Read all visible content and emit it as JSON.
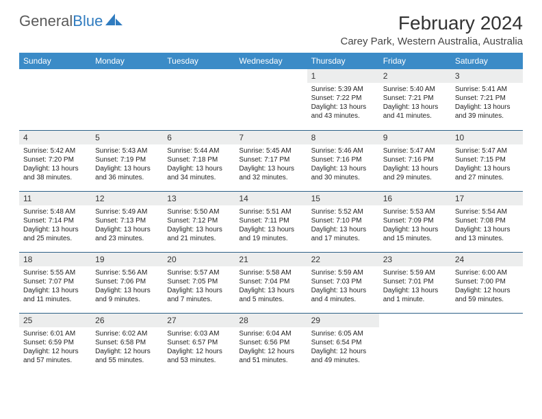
{
  "logo": {
    "text1": "General",
    "text2": "Blue"
  },
  "title": "February 2024",
  "location": "Carey Park, Western Australia, Australia",
  "colors": {
    "header_bg": "#3b8bc7",
    "header_text": "#ffffff",
    "daynum_bg": "#eceded",
    "row_border": "#2b5f86",
    "logo_blue": "#2f7bbf"
  },
  "day_headers": [
    "Sunday",
    "Monday",
    "Tuesday",
    "Wednesday",
    "Thursday",
    "Friday",
    "Saturday"
  ],
  "weeks": [
    [
      {
        "empty": true
      },
      {
        "empty": true
      },
      {
        "empty": true
      },
      {
        "empty": true
      },
      {
        "num": "1",
        "sunrise": "Sunrise: 5:39 AM",
        "sunset": "Sunset: 7:22 PM",
        "daylight": "Daylight: 13 hours and 43 minutes."
      },
      {
        "num": "2",
        "sunrise": "Sunrise: 5:40 AM",
        "sunset": "Sunset: 7:21 PM",
        "daylight": "Daylight: 13 hours and 41 minutes."
      },
      {
        "num": "3",
        "sunrise": "Sunrise: 5:41 AM",
        "sunset": "Sunset: 7:21 PM",
        "daylight": "Daylight: 13 hours and 39 minutes."
      }
    ],
    [
      {
        "num": "4",
        "sunrise": "Sunrise: 5:42 AM",
        "sunset": "Sunset: 7:20 PM",
        "daylight": "Daylight: 13 hours and 38 minutes."
      },
      {
        "num": "5",
        "sunrise": "Sunrise: 5:43 AM",
        "sunset": "Sunset: 7:19 PM",
        "daylight": "Daylight: 13 hours and 36 minutes."
      },
      {
        "num": "6",
        "sunrise": "Sunrise: 5:44 AM",
        "sunset": "Sunset: 7:18 PM",
        "daylight": "Daylight: 13 hours and 34 minutes."
      },
      {
        "num": "7",
        "sunrise": "Sunrise: 5:45 AM",
        "sunset": "Sunset: 7:17 PM",
        "daylight": "Daylight: 13 hours and 32 minutes."
      },
      {
        "num": "8",
        "sunrise": "Sunrise: 5:46 AM",
        "sunset": "Sunset: 7:16 PM",
        "daylight": "Daylight: 13 hours and 30 minutes."
      },
      {
        "num": "9",
        "sunrise": "Sunrise: 5:47 AM",
        "sunset": "Sunset: 7:16 PM",
        "daylight": "Daylight: 13 hours and 29 minutes."
      },
      {
        "num": "10",
        "sunrise": "Sunrise: 5:47 AM",
        "sunset": "Sunset: 7:15 PM",
        "daylight": "Daylight: 13 hours and 27 minutes."
      }
    ],
    [
      {
        "num": "11",
        "sunrise": "Sunrise: 5:48 AM",
        "sunset": "Sunset: 7:14 PM",
        "daylight": "Daylight: 13 hours and 25 minutes."
      },
      {
        "num": "12",
        "sunrise": "Sunrise: 5:49 AM",
        "sunset": "Sunset: 7:13 PM",
        "daylight": "Daylight: 13 hours and 23 minutes."
      },
      {
        "num": "13",
        "sunrise": "Sunrise: 5:50 AM",
        "sunset": "Sunset: 7:12 PM",
        "daylight": "Daylight: 13 hours and 21 minutes."
      },
      {
        "num": "14",
        "sunrise": "Sunrise: 5:51 AM",
        "sunset": "Sunset: 7:11 PM",
        "daylight": "Daylight: 13 hours and 19 minutes."
      },
      {
        "num": "15",
        "sunrise": "Sunrise: 5:52 AM",
        "sunset": "Sunset: 7:10 PM",
        "daylight": "Daylight: 13 hours and 17 minutes."
      },
      {
        "num": "16",
        "sunrise": "Sunrise: 5:53 AM",
        "sunset": "Sunset: 7:09 PM",
        "daylight": "Daylight: 13 hours and 15 minutes."
      },
      {
        "num": "17",
        "sunrise": "Sunrise: 5:54 AM",
        "sunset": "Sunset: 7:08 PM",
        "daylight": "Daylight: 13 hours and 13 minutes."
      }
    ],
    [
      {
        "num": "18",
        "sunrise": "Sunrise: 5:55 AM",
        "sunset": "Sunset: 7:07 PM",
        "daylight": "Daylight: 13 hours and 11 minutes."
      },
      {
        "num": "19",
        "sunrise": "Sunrise: 5:56 AM",
        "sunset": "Sunset: 7:06 PM",
        "daylight": "Daylight: 13 hours and 9 minutes."
      },
      {
        "num": "20",
        "sunrise": "Sunrise: 5:57 AM",
        "sunset": "Sunset: 7:05 PM",
        "daylight": "Daylight: 13 hours and 7 minutes."
      },
      {
        "num": "21",
        "sunrise": "Sunrise: 5:58 AM",
        "sunset": "Sunset: 7:04 PM",
        "daylight": "Daylight: 13 hours and 5 minutes."
      },
      {
        "num": "22",
        "sunrise": "Sunrise: 5:59 AM",
        "sunset": "Sunset: 7:03 PM",
        "daylight": "Daylight: 13 hours and 4 minutes."
      },
      {
        "num": "23",
        "sunrise": "Sunrise: 5:59 AM",
        "sunset": "Sunset: 7:01 PM",
        "daylight": "Daylight: 13 hours and 1 minute."
      },
      {
        "num": "24",
        "sunrise": "Sunrise: 6:00 AM",
        "sunset": "Sunset: 7:00 PM",
        "daylight": "Daylight: 12 hours and 59 minutes."
      }
    ],
    [
      {
        "num": "25",
        "sunrise": "Sunrise: 6:01 AM",
        "sunset": "Sunset: 6:59 PM",
        "daylight": "Daylight: 12 hours and 57 minutes."
      },
      {
        "num": "26",
        "sunrise": "Sunrise: 6:02 AM",
        "sunset": "Sunset: 6:58 PM",
        "daylight": "Daylight: 12 hours and 55 minutes."
      },
      {
        "num": "27",
        "sunrise": "Sunrise: 6:03 AM",
        "sunset": "Sunset: 6:57 PM",
        "daylight": "Daylight: 12 hours and 53 minutes."
      },
      {
        "num": "28",
        "sunrise": "Sunrise: 6:04 AM",
        "sunset": "Sunset: 6:56 PM",
        "daylight": "Daylight: 12 hours and 51 minutes."
      },
      {
        "num": "29",
        "sunrise": "Sunrise: 6:05 AM",
        "sunset": "Sunset: 6:54 PM",
        "daylight": "Daylight: 12 hours and 49 minutes."
      },
      {
        "empty": true
      },
      {
        "empty": true
      }
    ]
  ]
}
